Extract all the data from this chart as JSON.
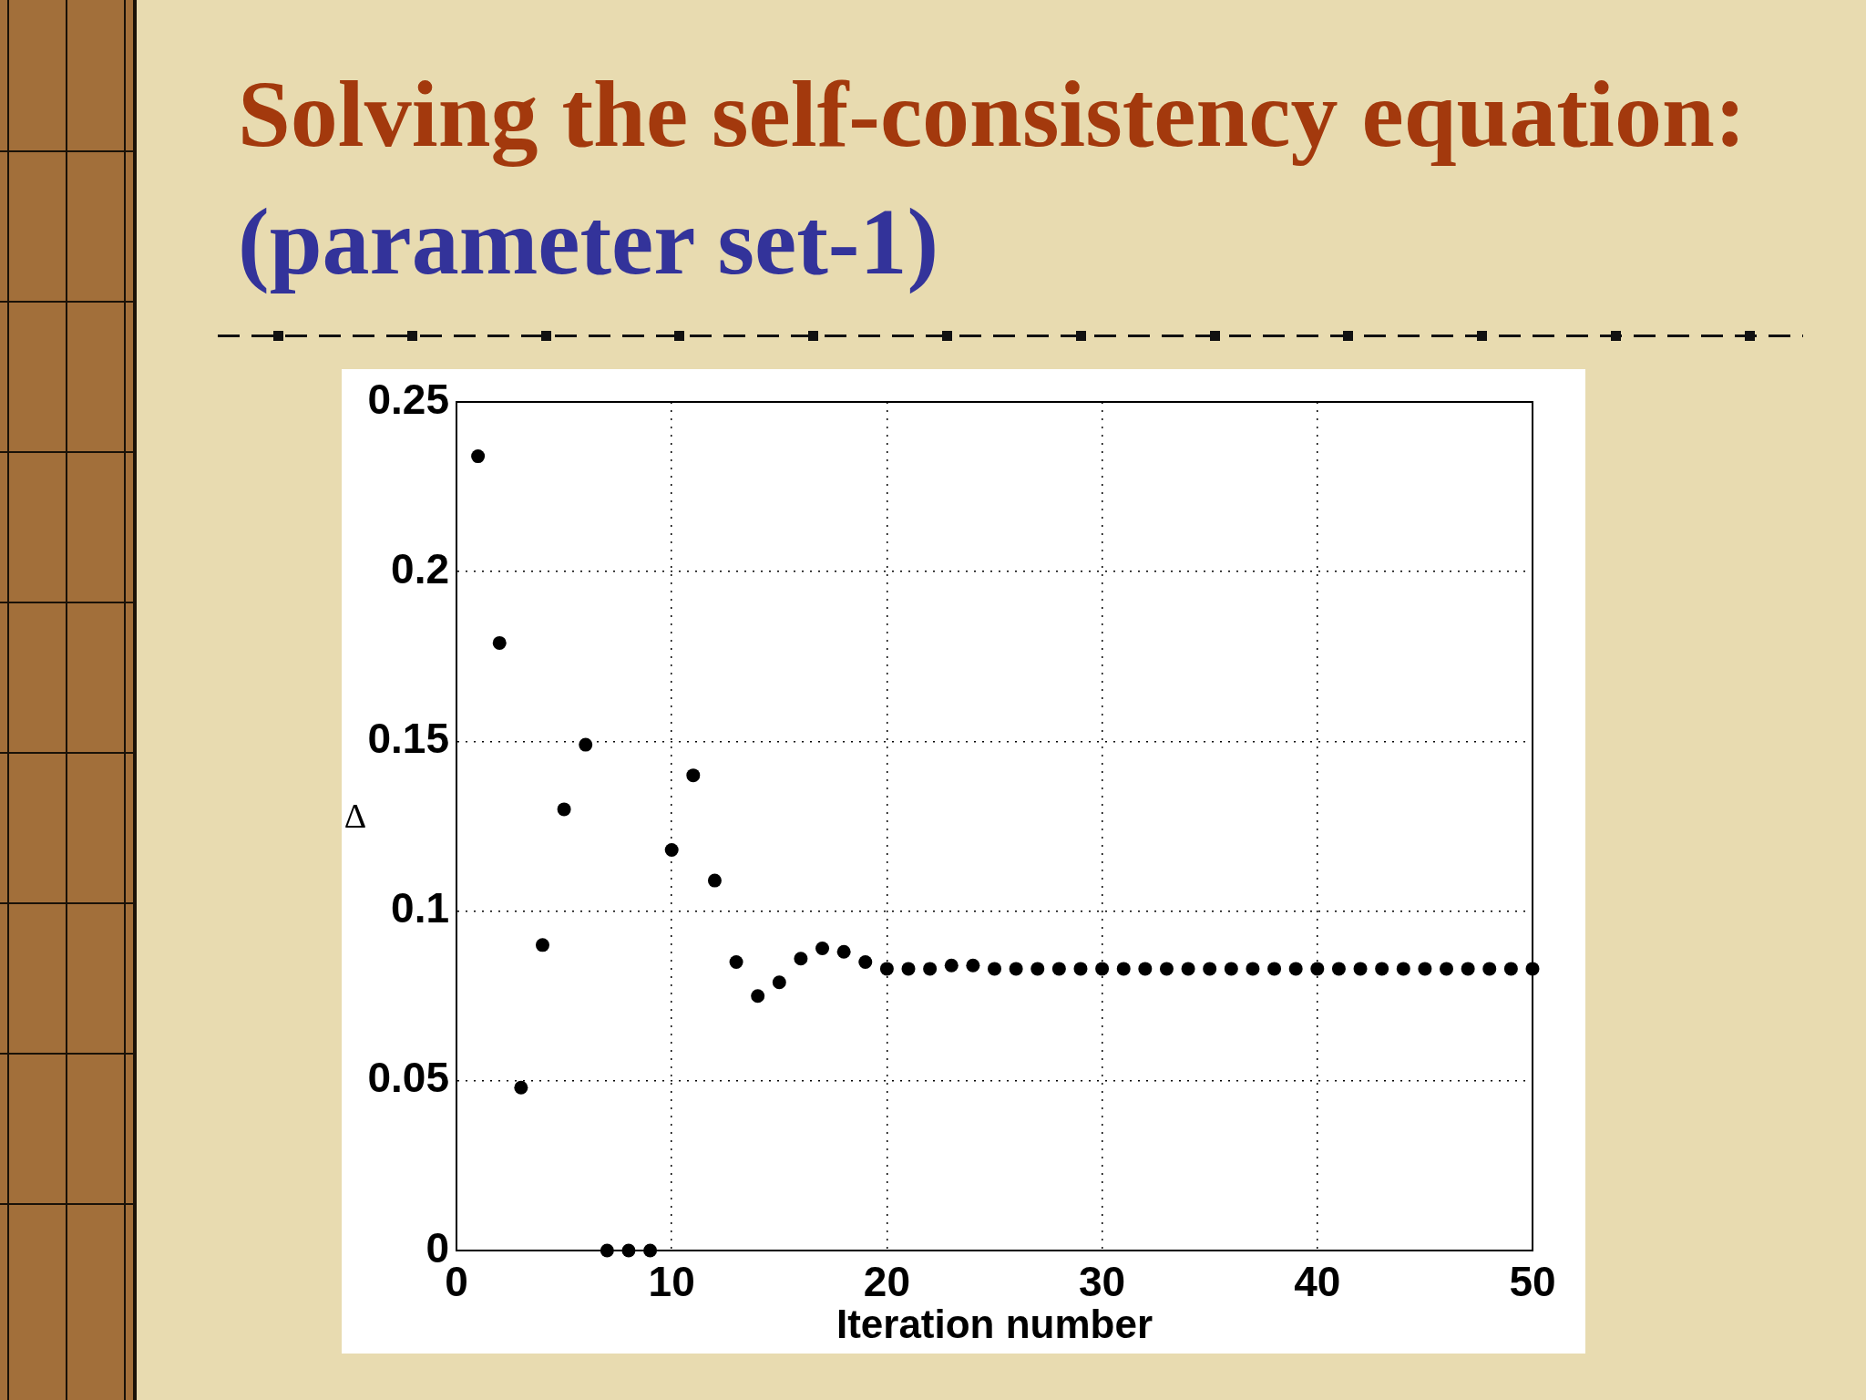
{
  "chart_data": {
    "type": "scatter",
    "title": "Solving the self-consistency equation:",
    "subtitle": "(parameter set-1)",
    "xlabel": "Iteration number",
    "ylabel": "Δ",
    "x": [
      1,
      2,
      3,
      4,
      5,
      6,
      7,
      8,
      9,
      10,
      11,
      12,
      13,
      14,
      15,
      16,
      17,
      18,
      19,
      20,
      21,
      22,
      23,
      24,
      25,
      26,
      27,
      28,
      29,
      30,
      31,
      32,
      33,
      34,
      35,
      36,
      37,
      38,
      39,
      40,
      41,
      42,
      43,
      44,
      45,
      46,
      47,
      48,
      49,
      50
    ],
    "values": [
      0.234,
      0.179,
      0.048,
      0.09,
      0.13,
      0.149,
      0,
      0,
      0,
      0.118,
      0.14,
      0.109,
      0.085,
      0.075,
      0.079,
      0.086,
      0.089,
      0.088,
      0.085,
      0.083,
      0.083,
      0.083,
      0.084,
      0.084,
      0.083,
      0.083,
      0.083,
      0.083,
      0.083,
      0.083,
      0.083,
      0.083,
      0.083,
      0.083,
      0.083,
      0.083,
      0.083,
      0.083,
      0.083,
      0.083,
      0.083,
      0.083,
      0.083,
      0.083,
      0.083,
      0.083,
      0.083,
      0.083,
      0.083,
      0.083
    ],
    "color": "#000000",
    "marker": "circle",
    "xlim": [
      0,
      50
    ],
    "xticks": [
      0,
      10,
      20,
      30,
      40,
      50
    ],
    "ylim": [
      0,
      0.25
    ],
    "yticks": [
      0,
      0.05,
      0.1,
      0.15,
      0.2,
      0.25
    ],
    "grid": true,
    "legend": false
  }
}
